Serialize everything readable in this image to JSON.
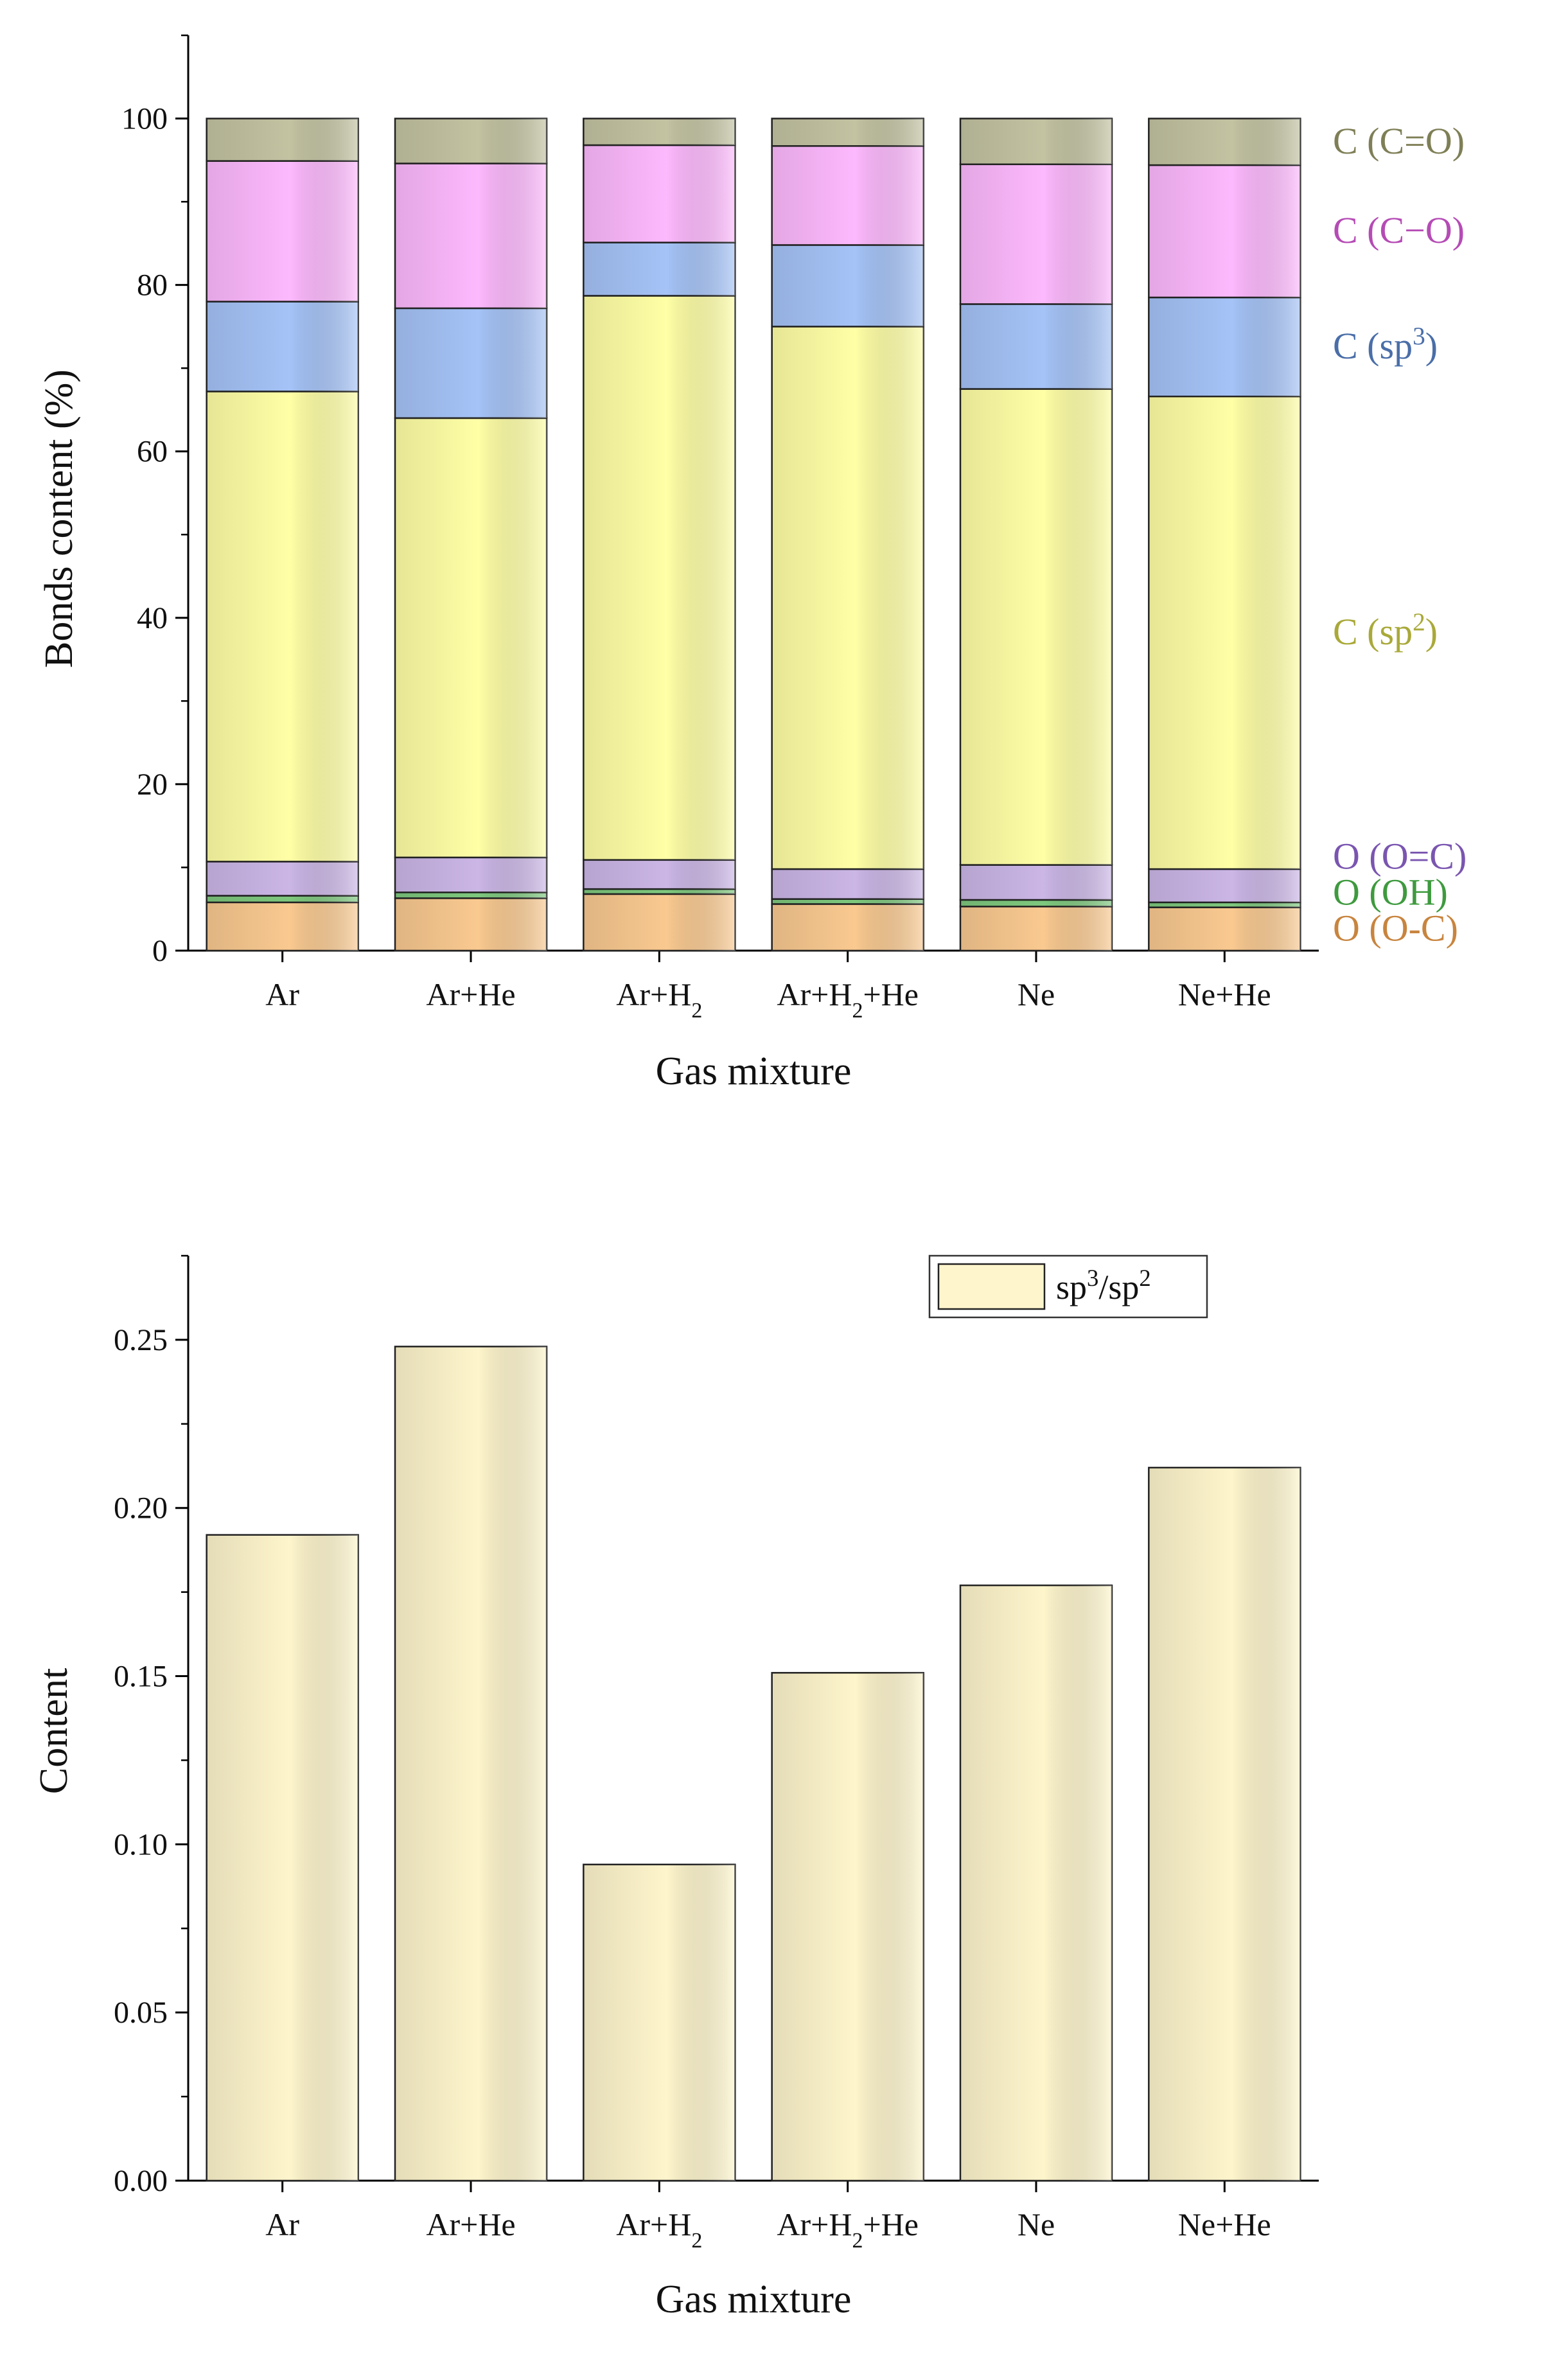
{
  "chart_data": [
    {
      "type": "bar",
      "stacked": true,
      "categories": [
        "Ar",
        "Ar+He",
        "Ar+H₂",
        "Ar+H₂+He",
        "Ne",
        "Ne+He"
      ],
      "xlabel": "Gas mixture",
      "ylabel": "Bonds content (%)",
      "ylim": [
        0,
        110
      ],
      "yticks": [
        0,
        20,
        40,
        60,
        80,
        100
      ],
      "ytick_labels": [
        "0",
        "20",
        "40",
        "60",
        "80",
        "100"
      ],
      "series": [
        {
          "name": "O (O-C)",
          "color": "#f9c990",
          "label_color": "#c8843e",
          "values": [
            5.8,
            6.3,
            6.8,
            5.6,
            5.3,
            5.2
          ]
        },
        {
          "name": "O (OH)",
          "color": "#7ec87e",
          "label_color": "#3e9a3e",
          "values": [
            0.8,
            0.7,
            0.6,
            0.6,
            0.8,
            0.6
          ]
        },
        {
          "name": "O (O=C)",
          "color": "#cbb6e6",
          "label_color": "#7a55b0",
          "values": [
            4.1,
            4.2,
            3.5,
            3.6,
            4.2,
            4.0
          ]
        },
        {
          "name": "C (sp²)",
          "color": "#ffffa6",
          "label_color": "#a9a93a",
          "values": [
            56.5,
            52.8,
            67.8,
            65.2,
            57.2,
            56.8
          ]
        },
        {
          "name": "C (sp³)",
          "color": "#a5c3f7",
          "label_color": "#4a6ea8",
          "values": [
            10.8,
            13.2,
            6.4,
            9.8,
            10.2,
            11.9
          ]
        },
        {
          "name": "C (C−O)",
          "color": "#fdb9fd",
          "label_color": "#b54bb5",
          "values": [
            16.9,
            17.4,
            11.7,
            11.9,
            16.8,
            15.9
          ]
        },
        {
          "name": "C (C=O)",
          "color": "#c3c3a2",
          "label_color": "#7f7f57",
          "values": [
            5.1,
            5.4,
            3.2,
            3.3,
            5.5,
            5.6
          ]
        }
      ]
    },
    {
      "type": "bar",
      "categories": [
        "Ar",
        "Ar+He",
        "Ar+H₂",
        "Ar+H₂+He",
        "Ne",
        "Ne+He"
      ],
      "xlabel": "Gas mixture",
      "ylabel": "Content",
      "ylim": [
        0,
        0.275
      ],
      "yticks": [
        0,
        0.05,
        0.1,
        0.15,
        0.2,
        0.25
      ],
      "ytick_labels": [
        "0.00",
        "0.05",
        "0.10",
        "0.15",
        "0.20",
        "0.25"
      ],
      "legend": "sp³/sp²",
      "legend_position": "top-right",
      "color": "#fef5cc",
      "values": [
        0.192,
        0.248,
        0.094,
        0.151,
        0.177,
        0.212
      ]
    }
  ]
}
